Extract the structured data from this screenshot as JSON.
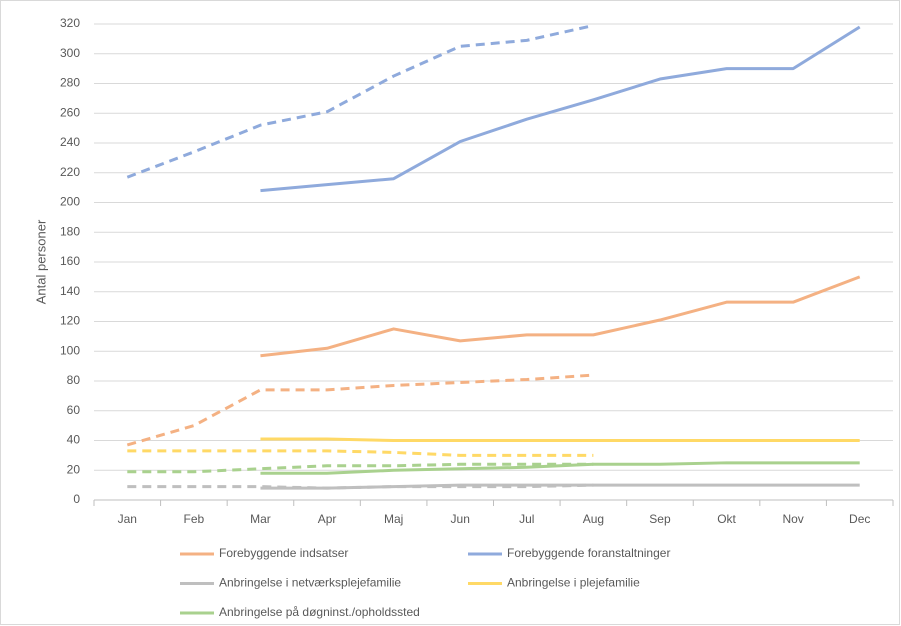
{
  "chart_data": {
    "type": "line",
    "y_label": "Antal personer",
    "categories": [
      "Jan",
      "Feb",
      "Mar",
      "Apr",
      "Maj",
      "Jun",
      "Jul",
      "Aug",
      "Sep",
      "Okt",
      "Nov",
      "Dec"
    ],
    "ylim": [
      0,
      320
    ],
    "yticks": [
      0,
      20,
      40,
      60,
      80,
      100,
      120,
      140,
      160,
      180,
      200,
      220,
      240,
      260,
      280,
      300,
      320
    ],
    "grid": true,
    "legend": "bottom",
    "series": [
      {
        "name": "Forebyggende indsatser",
        "color": "#f4b183",
        "values": [
          null,
          null,
          97,
          102,
          115,
          107,
          111,
          111,
          121,
          133,
          133,
          150
        ]
      },
      {
        "name": "Forebyggende foranstaltninger",
        "color": "#8faadc",
        "values": [
          null,
          null,
          208,
          212,
          216,
          241,
          256,
          269,
          283,
          290,
          290,
          318
        ]
      },
      {
        "name": "Anbringelse i netværksplejefamilie",
        "color": "#bfbfbf",
        "values": [
          null,
          null,
          8,
          8,
          9,
          10,
          10,
          10,
          10,
          10,
          10,
          10
        ]
      },
      {
        "name": "Anbringelse i plejefamilie",
        "color": "#ffd966",
        "values": [
          null,
          null,
          41,
          41,
          40,
          40,
          40,
          40,
          40,
          40,
          40,
          40
        ]
      },
      {
        "name": "Anbringelse på døgninst./opholdssted",
        "color": "#a9d18e",
        "values": [
          null,
          null,
          18,
          18,
          20,
          21,
          22,
          24,
          24,
          25,
          25,
          25
        ]
      },
      {
        "color": "#f4b183",
        "dashed": true,
        "values": [
          37,
          50,
          74,
          74,
          77,
          79,
          81,
          84,
          null,
          null,
          null,
          null
        ]
      },
      {
        "color": "#8faadc",
        "dashed": true,
        "values": [
          217,
          234,
          252,
          261,
          285,
          305,
          309,
          319,
          null,
          null,
          null,
          null
        ]
      },
      {
        "color": "#bfbfbf",
        "dashed": true,
        "values": [
          9,
          9,
          9,
          8,
          9,
          9,
          9,
          10,
          null,
          null,
          null,
          null
        ]
      },
      {
        "color": "#ffd966",
        "dashed": true,
        "values": [
          33,
          33,
          33,
          33,
          32,
          30,
          30,
          30,
          null,
          null,
          null,
          null
        ]
      },
      {
        "color": "#a9d18e",
        "dashed": true,
        "values": [
          19,
          19,
          21,
          23,
          23,
          24,
          24,
          24,
          null,
          null,
          null,
          null
        ]
      }
    ]
  }
}
